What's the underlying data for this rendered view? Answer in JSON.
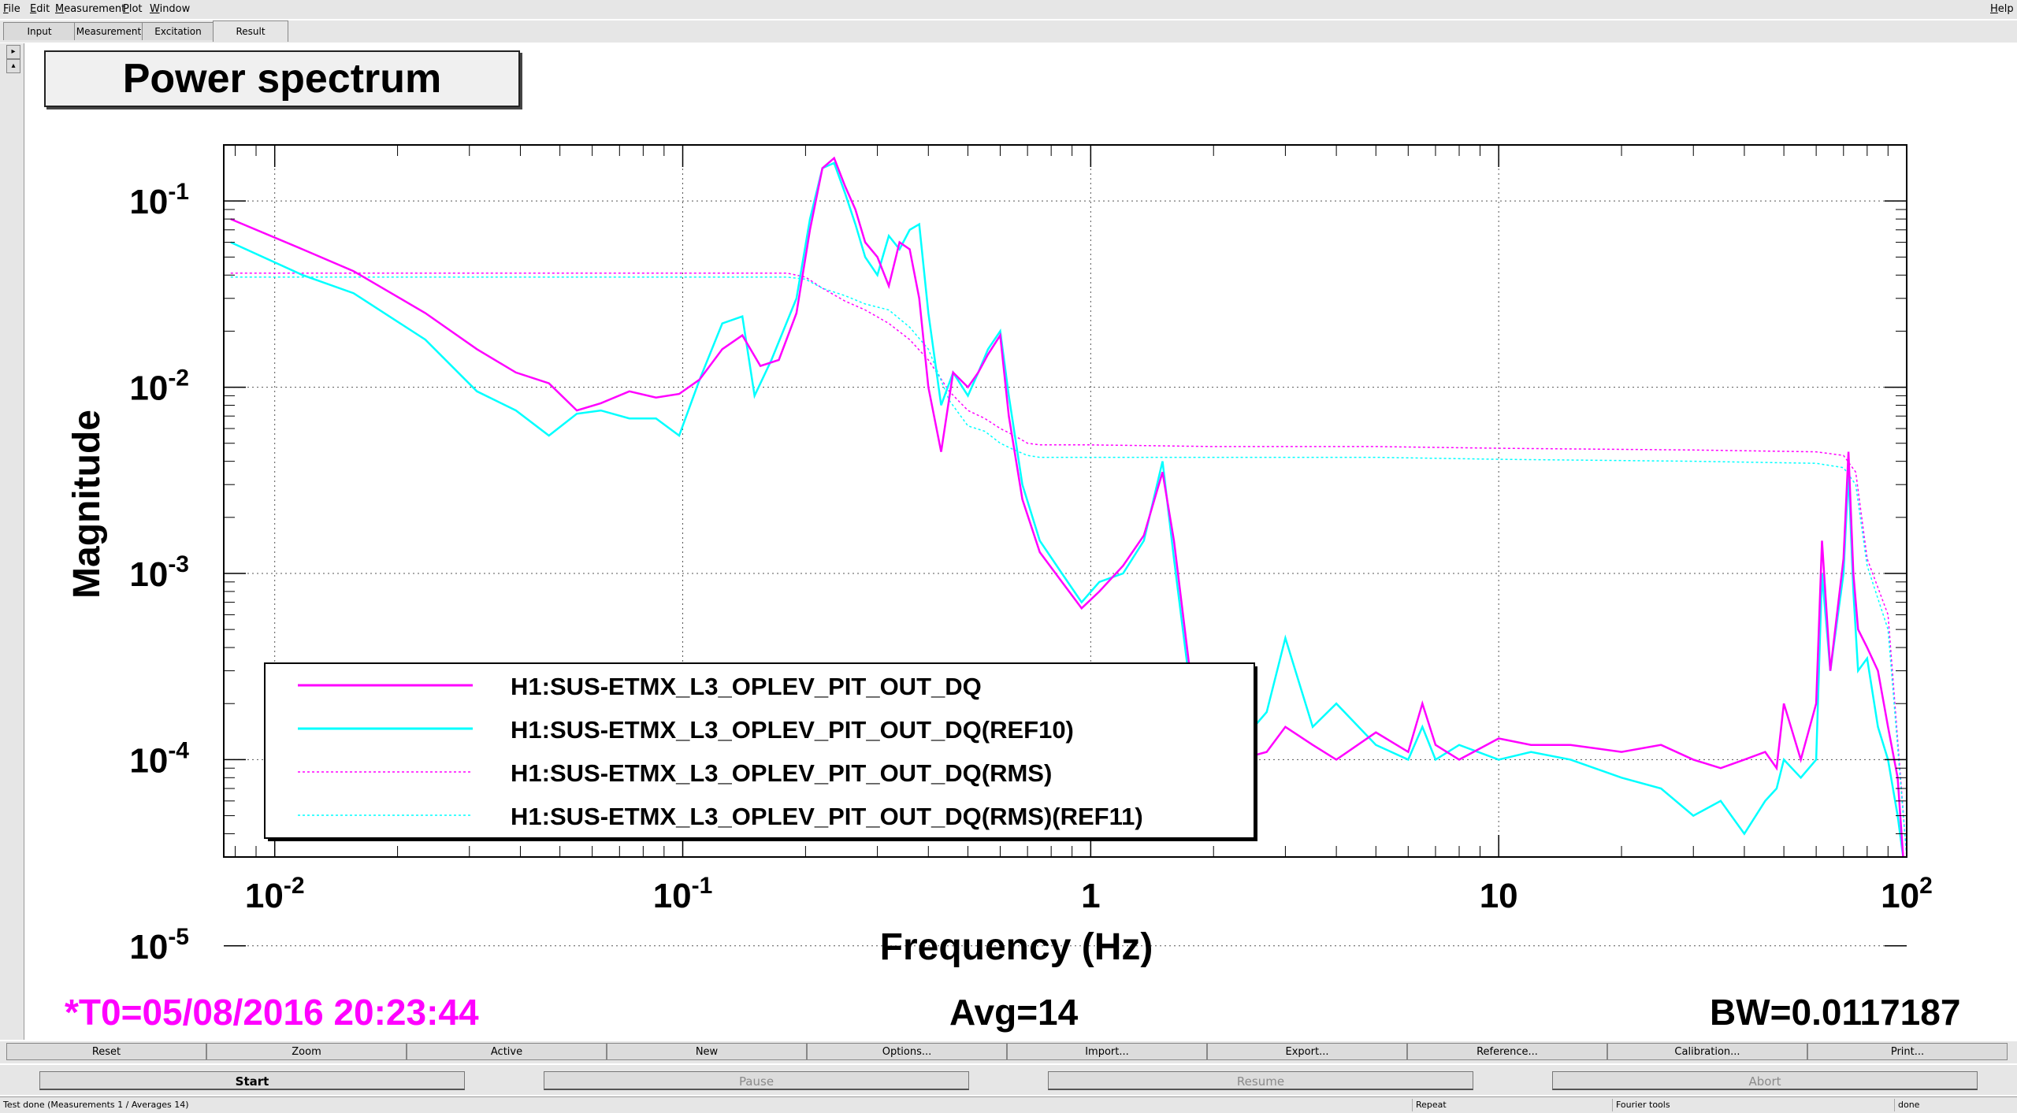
{
  "menu": {
    "items": [
      "File",
      "Edit",
      "Measurement",
      "Plot",
      "Window"
    ],
    "help": "Help"
  },
  "tabs": [
    {
      "label": "Input",
      "active": false
    },
    {
      "label": "Measurement",
      "active": false
    },
    {
      "label": "Excitation",
      "active": false
    },
    {
      "label": "Result",
      "active": true
    }
  ],
  "plot": {
    "title": "Power spectrum",
    "t0": "*T0=05/08/2016 20:23:44",
    "avg": "Avg=14",
    "bw": "BW=0.0117187"
  },
  "colors": {
    "magenta": "#ff00ff",
    "cyan": "#00ffff"
  },
  "chart_data": {
    "type": "line",
    "title": "Power spectrum",
    "xlabel": "Frequency (Hz)",
    "ylabel": "Magnitude",
    "xscale": "log",
    "yscale": "log",
    "xlim": [
      0.0075,
      100
    ],
    "ylim": [
      3e-05,
      0.2
    ],
    "grid": true,
    "legend_position": "lower-left",
    "x_tick_labels": [
      {
        "value": 0.01,
        "base": "10",
        "exp": "-2"
      },
      {
        "value": 0.1,
        "base": "10",
        "exp": "-1"
      },
      {
        "value": 1,
        "base": "1",
        "exp": ""
      },
      {
        "value": 10,
        "base": "10",
        "exp": ""
      },
      {
        "value": 100,
        "base": "10",
        "exp": "2"
      }
    ],
    "y_tick_labels": [
      {
        "value": 0.1,
        "base": "10",
        "exp": "-1"
      },
      {
        "value": 0.01,
        "base": "10",
        "exp": "-2"
      },
      {
        "value": 0.001,
        "base": "10",
        "exp": "-3"
      },
      {
        "value": 0.0001,
        "base": "10",
        "exp": "-4"
      },
      {
        "value": 1e-05,
        "base": "10",
        "exp": "-5"
      }
    ],
    "series": [
      {
        "name": "H1:SUS-ETMX_L3_OPLEV_PIT_OUT_DQ",
        "color": "#ff00ff",
        "style": "solid",
        "x": [
          0.0078,
          0.0117,
          0.0156,
          0.0234,
          0.0313,
          0.039,
          0.047,
          0.055,
          0.063,
          0.074,
          0.086,
          0.098,
          0.11,
          0.125,
          0.14,
          0.155,
          0.172,
          0.19,
          0.205,
          0.22,
          0.235,
          0.25,
          0.265,
          0.28,
          0.3,
          0.32,
          0.34,
          0.36,
          0.38,
          0.4,
          0.43,
          0.46,
          0.5,
          0.53,
          0.56,
          0.6,
          0.63,
          0.68,
          0.75,
          0.85,
          0.95,
          1.05,
          1.2,
          1.35,
          1.5,
          1.6,
          1.75,
          2.0,
          2.3,
          2.7,
          3.0,
          3.5,
          4.0,
          5.0,
          6.0,
          6.5,
          7.0,
          8.0,
          10.0,
          12.0,
          15.0,
          20.0,
          25.0,
          30.0,
          35.0,
          40.0,
          45.0,
          48.0,
          50.0,
          55.0,
          60.0,
          62.0,
          65.0,
          70.0,
          72.0,
          74.0,
          76.0,
          80.0,
          85.0,
          90.0,
          95.0,
          98.0
        ],
        "y": [
          0.08,
          0.055,
          0.042,
          0.025,
          0.016,
          0.012,
          0.0105,
          0.0075,
          0.0082,
          0.0095,
          0.0088,
          0.0092,
          0.011,
          0.016,
          0.019,
          0.013,
          0.014,
          0.025,
          0.07,
          0.15,
          0.17,
          0.12,
          0.09,
          0.06,
          0.05,
          0.035,
          0.06,
          0.055,
          0.03,
          0.01,
          0.0045,
          0.012,
          0.01,
          0.012,
          0.015,
          0.019,
          0.007,
          0.0025,
          0.0013,
          0.0009,
          0.00065,
          0.0008,
          0.0011,
          0.0016,
          0.0035,
          0.0015,
          0.0003,
          0.00012,
          0.0001,
          0.00011,
          0.00015,
          0.00012,
          0.0001,
          0.00014,
          0.00011,
          0.0002,
          0.00012,
          0.0001,
          0.00013,
          0.00012,
          0.00012,
          0.00011,
          0.00012,
          0.0001,
          9e-05,
          0.0001,
          0.00011,
          9e-05,
          0.0002,
          0.0001,
          0.0002,
          0.0015,
          0.0003,
          0.0012,
          0.0045,
          0.001,
          0.0005,
          0.0004,
          0.0003,
          0.00015,
          8e-05,
          3e-05
        ]
      },
      {
        "name": "H1:SUS-ETMX_L3_OPLEV_PIT_OUT_DQ(REF10)",
        "color": "#00ffff",
        "style": "solid",
        "x": [
          0.0078,
          0.0117,
          0.0156,
          0.0234,
          0.0313,
          0.039,
          0.047,
          0.055,
          0.063,
          0.074,
          0.086,
          0.098,
          0.11,
          0.125,
          0.14,
          0.15,
          0.165,
          0.19,
          0.205,
          0.22,
          0.235,
          0.25,
          0.265,
          0.28,
          0.3,
          0.32,
          0.34,
          0.36,
          0.38,
          0.4,
          0.43,
          0.46,
          0.5,
          0.53,
          0.56,
          0.6,
          0.63,
          0.68,
          0.75,
          0.85,
          0.95,
          1.05,
          1.2,
          1.35,
          1.5,
          1.6,
          1.75,
          2.0,
          2.3,
          2.7,
          3.0,
          3.5,
          4.0,
          5.0,
          6.0,
          6.5,
          7.0,
          8.0,
          10.0,
          12.0,
          15.0,
          20.0,
          25.0,
          30.0,
          35.0,
          40.0,
          45.0,
          48.0,
          50.0,
          55.0,
          60.0,
          62.0,
          65.0,
          70.0,
          72.0,
          74.0,
          76.0,
          80.0,
          85.0,
          90.0,
          95.0,
          98.0
        ],
        "y": [
          0.06,
          0.04,
          0.032,
          0.018,
          0.0095,
          0.0075,
          0.0055,
          0.0072,
          0.0075,
          0.0068,
          0.0068,
          0.0055,
          0.011,
          0.022,
          0.024,
          0.009,
          0.014,
          0.03,
          0.08,
          0.15,
          0.16,
          0.11,
          0.075,
          0.05,
          0.04,
          0.065,
          0.055,
          0.07,
          0.075,
          0.025,
          0.008,
          0.012,
          0.009,
          0.012,
          0.016,
          0.02,
          0.009,
          0.003,
          0.0015,
          0.001,
          0.0007,
          0.0009,
          0.001,
          0.0015,
          0.004,
          0.0012,
          0.00025,
          0.0001,
          0.00012,
          0.00018,
          0.00045,
          0.00015,
          0.0002,
          0.00012,
          0.0001,
          0.00015,
          0.0001,
          0.00012,
          0.0001,
          0.00011,
          0.0001,
          8e-05,
          7e-05,
          5e-05,
          6e-05,
          4e-05,
          6e-05,
          7e-05,
          0.0001,
          8e-05,
          0.0001,
          0.001,
          0.0003,
          0.001,
          0.0035,
          0.0008,
          0.0003,
          0.00035,
          0.00015,
          0.0001,
          5e-05,
          2e-05
        ]
      },
      {
        "name": "H1:SUS-ETMX_L3_OPLEV_PIT_OUT_DQ(RMS)",
        "color": "#ff00ff",
        "style": "dotted",
        "x": [
          0.0078,
          0.01,
          0.02,
          0.05,
          0.1,
          0.15,
          0.18,
          0.2,
          0.22,
          0.25,
          0.28,
          0.32,
          0.36,
          0.4,
          0.45,
          0.5,
          0.55,
          0.6,
          0.65,
          0.7,
          0.75,
          1.0,
          2.0,
          5.0,
          10.0,
          30.0,
          60.0,
          70.0,
          75.0,
          80.0,
          90.0,
          100.0
        ],
        "y": [
          0.041,
          0.041,
          0.041,
          0.041,
          0.041,
          0.041,
          0.041,
          0.039,
          0.034,
          0.029,
          0.026,
          0.022,
          0.018,
          0.014,
          0.0095,
          0.0075,
          0.0068,
          0.006,
          0.0055,
          0.005,
          0.0049,
          0.0049,
          0.0048,
          0.0048,
          0.0047,
          0.0046,
          0.0045,
          0.0043,
          0.0035,
          0.0012,
          0.0006,
          3e-05
        ]
      },
      {
        "name": "H1:SUS-ETMX_L3_OPLEV_PIT_OUT_DQ(RMS)(REF11)",
        "color": "#00ffff",
        "style": "dotted",
        "x": [
          0.0078,
          0.01,
          0.02,
          0.05,
          0.1,
          0.15,
          0.18,
          0.2,
          0.22,
          0.25,
          0.28,
          0.32,
          0.36,
          0.4,
          0.45,
          0.5,
          0.55,
          0.6,
          0.65,
          0.7,
          0.75,
          1.0,
          2.0,
          5.0,
          10.0,
          30.0,
          60.0,
          70.0,
          75.0,
          80.0,
          90.0,
          100.0
        ],
        "y": [
          0.039,
          0.039,
          0.039,
          0.039,
          0.039,
          0.039,
          0.039,
          0.038,
          0.034,
          0.031,
          0.028,
          0.026,
          0.021,
          0.016,
          0.0085,
          0.0062,
          0.0058,
          0.005,
          0.0046,
          0.0043,
          0.0042,
          0.0042,
          0.0042,
          0.0042,
          0.0041,
          0.004,
          0.0039,
          0.0037,
          0.003,
          0.0011,
          0.0005,
          3e-05
        ]
      }
    ]
  },
  "buttons_row1": [
    "Reset",
    "Zoom",
    "Active",
    "New",
    "Options...",
    "Import...",
    "Export...",
    "Reference...",
    "Calibration...",
    "Print..."
  ],
  "buttons_row2": [
    {
      "label": "Start",
      "enabled": true
    },
    {
      "label": "Pause",
      "enabled": false
    },
    {
      "label": "Resume",
      "enabled": false
    },
    {
      "label": "Abort",
      "enabled": false
    }
  ],
  "status": {
    "message": "Test done (Measurements 1 / Averages 14)",
    "repeat": "Repeat",
    "tools": "Fourier tools",
    "state": "done"
  }
}
